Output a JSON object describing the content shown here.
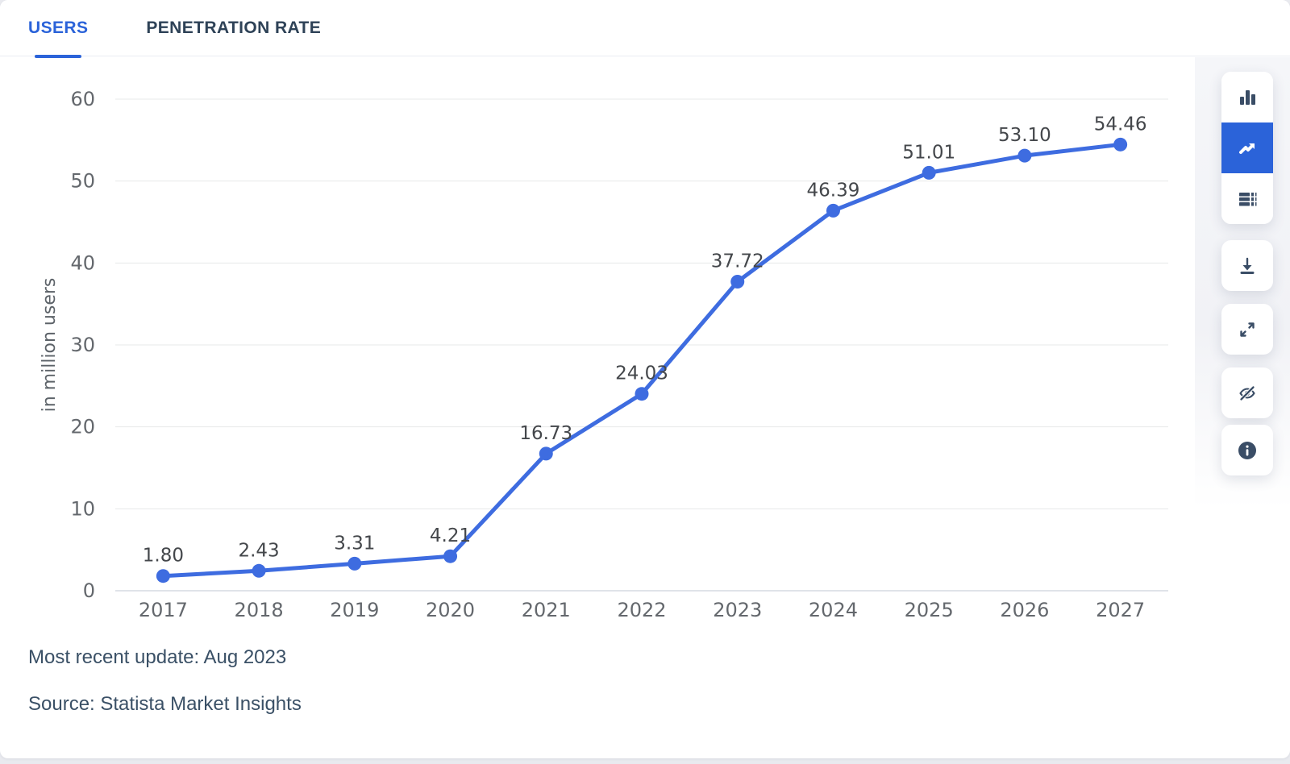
{
  "accent": "#2b63d9",
  "tabs": [
    {
      "label": "USERS",
      "active": true
    },
    {
      "label": "PENETRATION RATE",
      "active": false
    }
  ],
  "chart_data": {
    "type": "line",
    "categories": [
      "2017",
      "2018",
      "2019",
      "2020",
      "2021",
      "2022",
      "2023",
      "2024",
      "2025",
      "2026",
      "2027"
    ],
    "values": [
      1.8,
      2.43,
      3.31,
      4.21,
      16.73,
      24.03,
      37.72,
      46.39,
      51.01,
      53.1,
      54.46
    ],
    "title": "",
    "xlabel": "",
    "ylabel": "in million users",
    "yticks": [
      0,
      10,
      20,
      30,
      40,
      50,
      60
    ],
    "ylim": [
      0,
      60
    ],
    "grid": true,
    "legend": "none",
    "line_color": "#3e6ce0",
    "point_color": "#3e6ce0",
    "label_decimals": 2
  },
  "toolbar": {
    "active_icon": "line-chart",
    "icons": [
      "bar-chart",
      "line-chart",
      "table",
      "download",
      "fullscreen",
      "toggle-labels",
      "info"
    ]
  },
  "footer": {
    "updated": "Most recent update: Aug 2023",
    "source": "Source: Statista Market Insights"
  }
}
